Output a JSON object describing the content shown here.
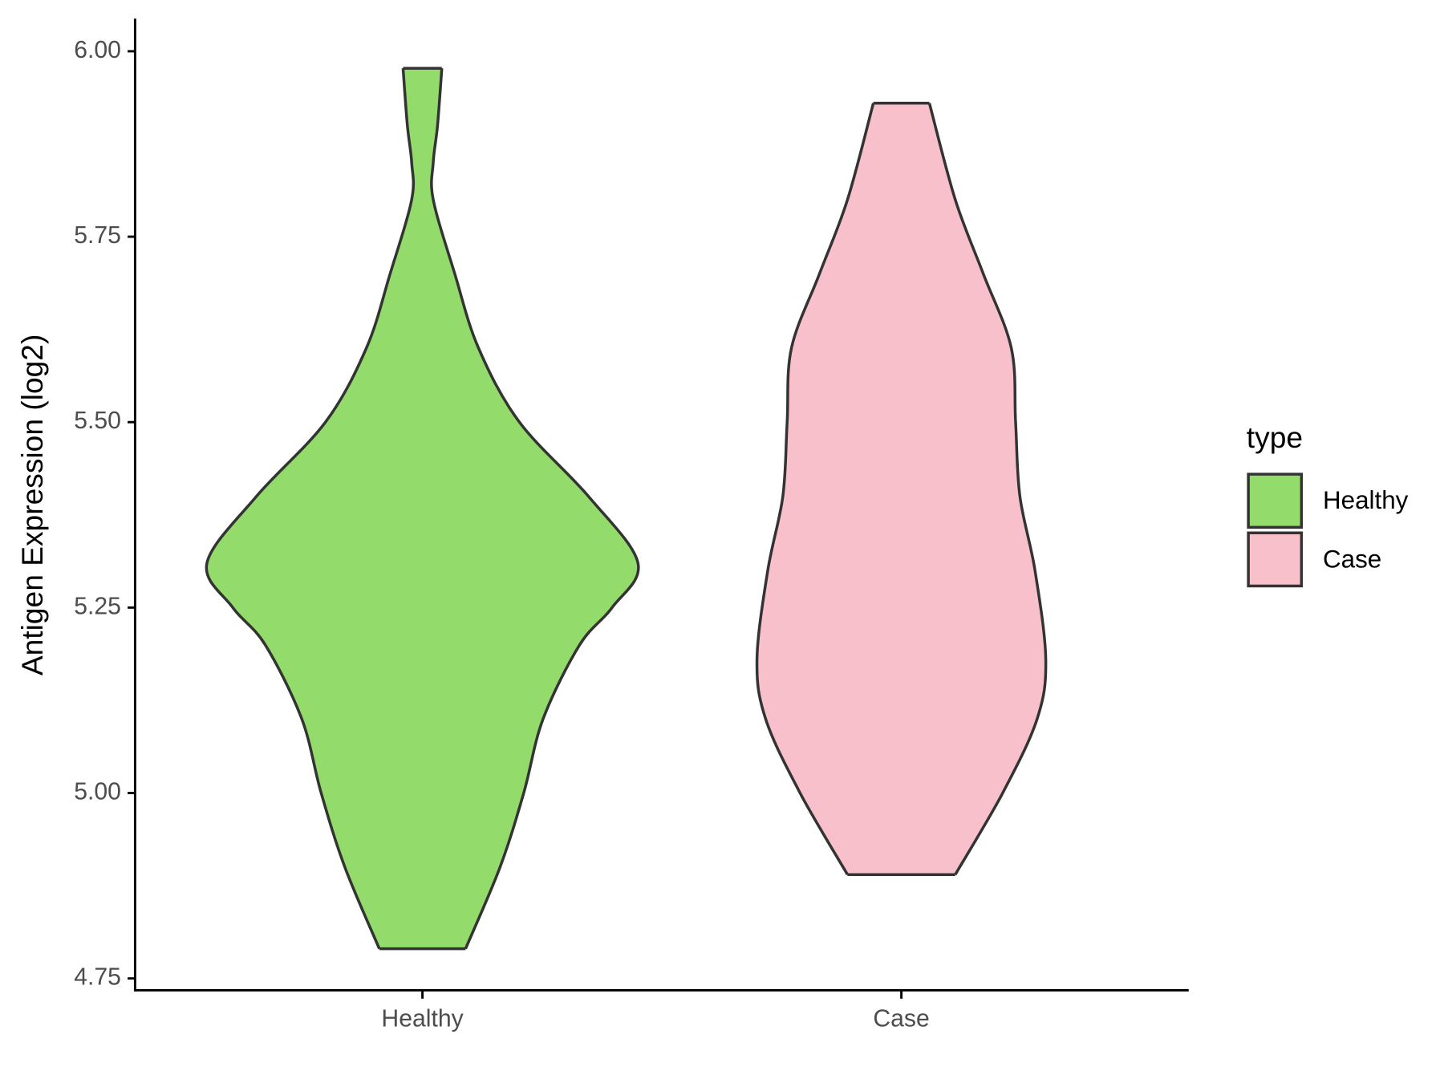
{
  "chart_data": {
    "type": "violin",
    "y_label": "Antigen Expression (log2)",
    "categories": [
      "Healthy",
      "Case"
    ],
    "series": [
      {
        "name": "Healthy",
        "color": "#93dc6b",
        "y": [
          4.79,
          4.9,
          5.0,
          5.1,
          5.2,
          5.25,
          5.31,
          5.4,
          5.5,
          5.6,
          5.7,
          5.8,
          5.85,
          5.9,
          5.977
        ],
        "density": [
          0.2,
          0.36,
          0.47,
          0.56,
          0.73,
          0.88,
          1.0,
          0.77,
          0.45,
          0.26,
          0.15,
          0.05,
          0.05,
          0.07,
          0.09
        ]
      },
      {
        "name": "Case",
        "color": "#f7c0cb",
        "y": [
          4.89,
          5.0,
          5.1,
          5.18,
          5.3,
          5.4,
          5.5,
          5.6,
          5.7,
          5.8,
          5.93
        ],
        "density": [
          0.25,
          0.47,
          0.63,
          0.67,
          0.62,
          0.55,
          0.53,
          0.51,
          0.38,
          0.25,
          0.13
        ]
      }
    ],
    "ylim": [
      4.734,
      6.044
    ],
    "yticks": [
      4.75,
      {
        "value": 5,
        "label": "5.00"
      },
      5.25,
      {
        "value": 5.5,
        "label": "5.50"
      },
      5.75,
      {
        "value": 6,
        "label": "6.00"
      }
    ],
    "legend_title": "type",
    "legend": "right"
  }
}
